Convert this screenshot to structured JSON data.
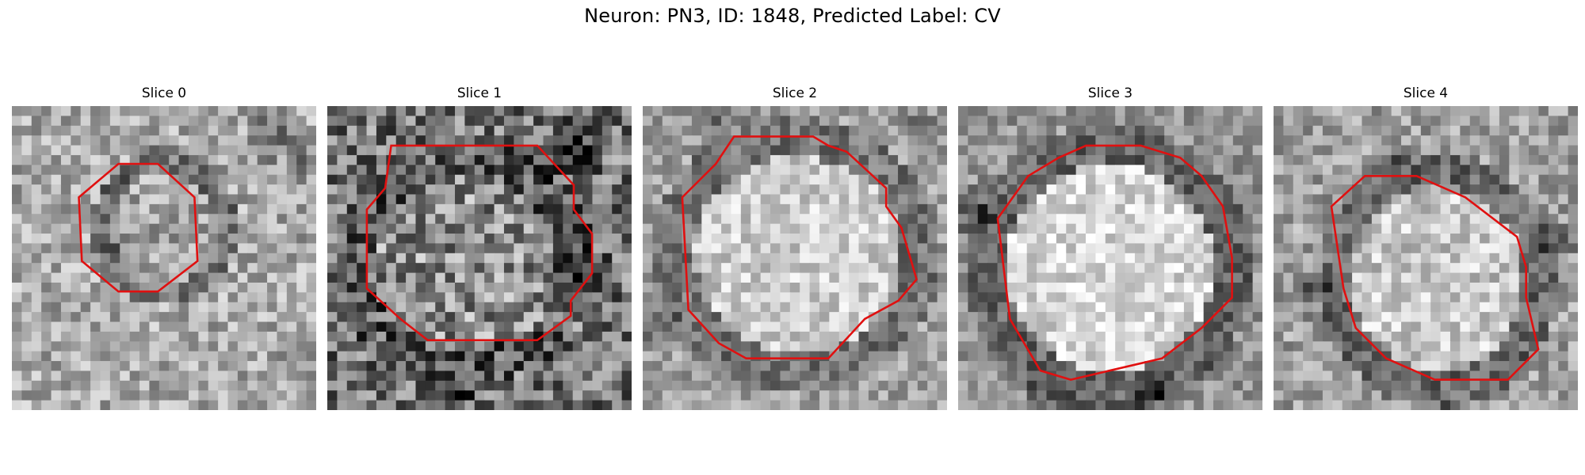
{
  "figure": {
    "title": "Neuron: PN3, ID: 1848, Predicted Label: CV"
  },
  "panels": [
    {
      "title": "Slice 0"
    },
    {
      "title": "Slice 1"
    },
    {
      "title": "Slice 2"
    },
    {
      "title": "Slice 3"
    },
    {
      "title": "Slice 4"
    }
  ],
  "colors": {
    "contour": "#e01010",
    "background": "#ffffff"
  }
}
